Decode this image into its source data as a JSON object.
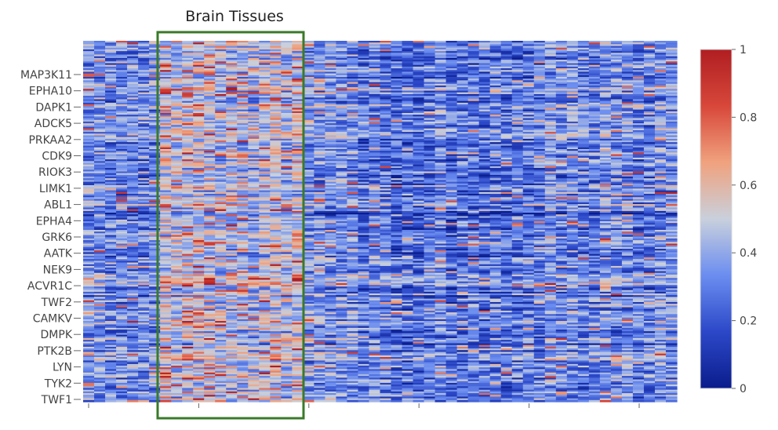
{
  "chart_data": {
    "type": "heatmap",
    "title": "",
    "xlabel": "",
    "ylabel": "",
    "y_tick_labels": [
      "MAP3K11",
      "EPHA10",
      "DAPK1",
      "ADCK5",
      "PRKAA2",
      "CDK9",
      "RIOK3",
      "LIMK1",
      "ABL1",
      "EPHA4",
      "GRK6",
      "AATK",
      "NEK9",
      "ACVR1C",
      "TWF2",
      "CAMKV",
      "DMPK",
      "PTK2B",
      "LYN",
      "TYK2",
      "TWF1"
    ],
    "x_tick_count": 6,
    "x_tick_labels": [],
    "value_range": [
      0,
      1
    ],
    "colorscale": [
      "#0a1c8c",
      "#2c48c8",
      "#6b8df0",
      "#c9d0dc",
      "#f0a27e",
      "#d8473a",
      "#b01e22"
    ],
    "colorbar_ticks": [
      "0",
      "0.2",
      "0.4",
      "0.6",
      "0.8",
      "1"
    ],
    "grid": false,
    "annotation": {
      "label": "Brain Tissues",
      "box_color": "#3a7a28"
    },
    "description_values": "Dense kinase-by-tissue expression heatmap (~210 rows × ~54 columns), values 0–1; brain tissue columns show elevated values."
  }
}
